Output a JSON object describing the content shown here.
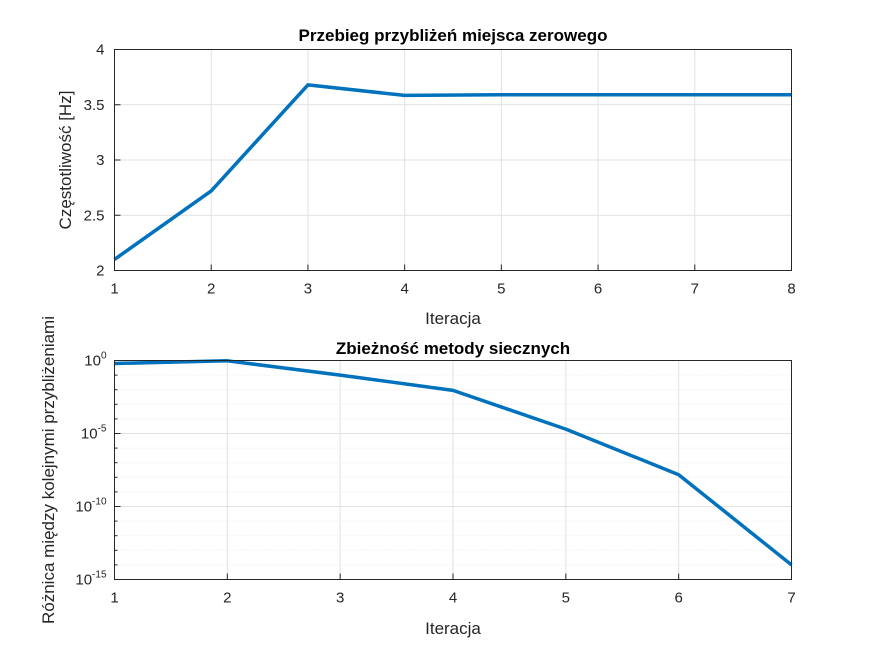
{
  "chart_data": [
    {
      "type": "line",
      "title": "Przebieg przybliżeń miejsca zerowego",
      "xlabel": "Iteracja",
      "ylabel": "Częstotliwość [Hz]",
      "xlim": [
        1,
        8
      ],
      "ylim": [
        2,
        4
      ],
      "xticks": [
        1,
        2,
        3,
        4,
        5,
        6,
        7,
        8
      ],
      "yticks": [
        2,
        2.5,
        3,
        3.5,
        4
      ],
      "ytick_labels": [
        "2",
        "2.5",
        "3",
        "3.5",
        "4"
      ],
      "grid": true,
      "yscale": "linear",
      "color": "#0072bd",
      "x": [
        1,
        2,
        3,
        4,
        5,
        6,
        7,
        8
      ],
      "y": [
        2.1,
        2.72,
        3.68,
        3.585,
        3.59,
        3.59,
        3.59,
        3.59
      ]
    },
    {
      "type": "line",
      "title": "Zbieżność metody siecznych",
      "xlabel": "Iteracja",
      "ylabel": "Różnica między kolejnymi przybliżeniami",
      "xlim": [
        1,
        7
      ],
      "ylim": [
        1e-15,
        1
      ],
      "xticks": [
        1,
        2,
        3,
        4,
        5,
        6,
        7
      ],
      "yticks_exponents": [
        0,
        -5,
        -10,
        -15
      ],
      "ytick_base": "10",
      "grid": true,
      "yscale": "log",
      "color": "#0072bd",
      "x": [
        1,
        2,
        3,
        4,
        5,
        6,
        7
      ],
      "y": [
        0.62,
        0.96,
        0.1,
        0.009,
        2e-05,
        1.5e-08,
        1e-14
      ]
    }
  ]
}
